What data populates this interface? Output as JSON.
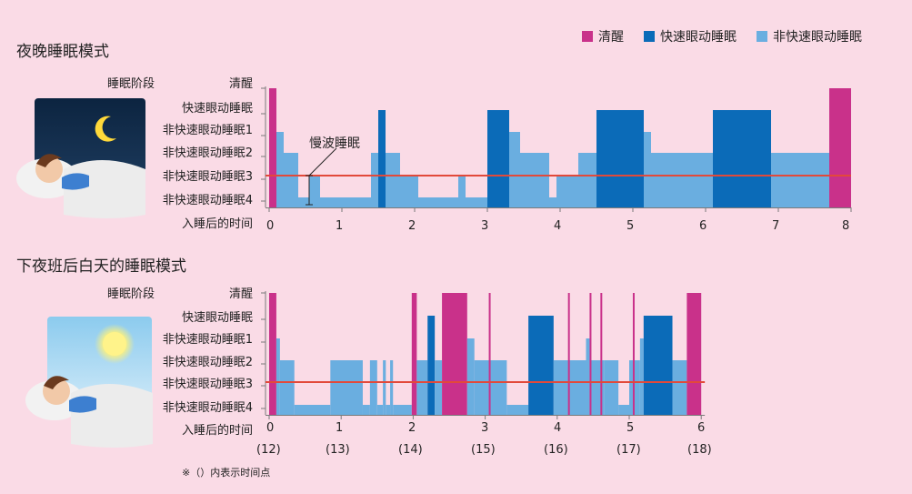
{
  "legend": {
    "awake": "清醒",
    "rem": "快速眼动睡眠",
    "nrem": "非快速眼动睡眠"
  },
  "colors": {
    "awake": "#c9318a",
    "rem": "#0b6bb8",
    "nrem": "#6aaee0",
    "line": "#e2493a",
    "background": "#fadbe6"
  },
  "note": "※（）内表示时间点",
  "chart_data": [
    {
      "type": "step",
      "title": "夜晚睡眠模式",
      "ylabel": "睡眠阶段",
      "xlabel": "入睡后的时间",
      "stages": [
        "清醒",
        "快速眼动睡眠",
        "非快速眼动睡眠1",
        "非快速眼动睡眠2",
        "非快速眼动睡眠3",
        "非快速眼动睡眠4"
      ],
      "xticks": [
        "0",
        "1",
        "2",
        "3",
        "4",
        "5",
        "6",
        "7",
        "8"
      ],
      "xlim": [
        0,
        8
      ],
      "reference_stage": 4,
      "annotation": {
        "text": "慢波睡眠",
        "x": 0.6
      },
      "segments": [
        [
          0,
          0.1,
          0
        ],
        [
          0.1,
          0.2,
          2
        ],
        [
          0.2,
          0.4,
          3
        ],
        [
          0.4,
          0.55,
          5
        ],
        [
          0.55,
          0.7,
          4
        ],
        [
          0.7,
          1.4,
          5
        ],
        [
          1.4,
          1.5,
          3
        ],
        [
          1.5,
          1.6,
          1
        ],
        [
          1.6,
          1.8,
          3
        ],
        [
          1.8,
          2.05,
          4
        ],
        [
          2.05,
          2.6,
          5
        ],
        [
          2.6,
          2.7,
          4
        ],
        [
          2.7,
          3.0,
          5
        ],
        [
          3.0,
          3.3,
          1
        ],
        [
          3.3,
          3.45,
          2
        ],
        [
          3.45,
          3.85,
          3
        ],
        [
          3.85,
          3.95,
          5
        ],
        [
          3.95,
          4.25,
          4
        ],
        [
          4.25,
          4.5,
          3
        ],
        [
          4.5,
          5.15,
          1
        ],
        [
          5.15,
          5.25,
          2
        ],
        [
          5.25,
          6.1,
          3
        ],
        [
          6.1,
          6.9,
          1
        ],
        [
          6.9,
          7.7,
          3
        ],
        [
          7.7,
          8.0,
          0
        ]
      ]
    },
    {
      "type": "step",
      "title": "下夜班后白天的睡眠模式",
      "ylabel": "睡眠阶段",
      "xlabel": "入睡后的时间",
      "stages": [
        "清醒",
        "快速眼动睡眠",
        "非快速眼动睡眠1",
        "非快速眼动睡眠2",
        "非快速眼动睡眠3",
        "非快速眼动睡眠4"
      ],
      "xticks": [
        "0",
        "1",
        "2",
        "3",
        "4",
        "5",
        "6"
      ],
      "time_points": [
        "(12)",
        "(13)",
        "(14)",
        "(15)",
        "(16)",
        "(17)",
        "(18)"
      ],
      "xlim": [
        0,
        6.05
      ],
      "reference_stage": 4,
      "segments": [
        [
          0,
          0.1,
          0
        ],
        [
          0.1,
          0.15,
          2
        ],
        [
          0.15,
          0.35,
          3
        ],
        [
          0.35,
          0.85,
          5
        ],
        [
          0.85,
          1.3,
          3
        ],
        [
          1.3,
          1.4,
          5
        ],
        [
          1.4,
          1.5,
          3
        ],
        [
          1.5,
          1.58,
          5
        ],
        [
          1.58,
          1.62,
          3
        ],
        [
          1.62,
          1.68,
          5
        ],
        [
          1.68,
          1.72,
          3
        ],
        [
          1.72,
          1.98,
          5
        ],
        [
          1.98,
          2.05,
          0
        ],
        [
          2.05,
          2.2,
          3
        ],
        [
          2.2,
          2.3,
          1
        ],
        [
          2.3,
          2.4,
          3
        ],
        [
          2.4,
          2.75,
          0
        ],
        [
          2.75,
          2.85,
          2
        ],
        [
          2.85,
          3.3,
          3
        ],
        [
          3.3,
          3.6,
          5
        ],
        [
          3.6,
          3.95,
          1
        ],
        [
          3.95,
          4.4,
          3
        ],
        [
          4.4,
          4.45,
          2
        ],
        [
          4.45,
          4.65,
          3
        ],
        [
          4.65,
          4.85,
          3
        ],
        [
          4.85,
          5.0,
          5
        ],
        [
          5.0,
          5.15,
          3
        ],
        [
          5.15,
          5.2,
          2
        ],
        [
          5.2,
          5.6,
          1
        ],
        [
          5.6,
          5.8,
          3
        ],
        [
          5.8,
          6.0,
          0
        ]
      ],
      "awake_spikes": [
        3.05,
        4.15,
        4.45,
        4.6,
        5.05
      ]
    }
  ]
}
